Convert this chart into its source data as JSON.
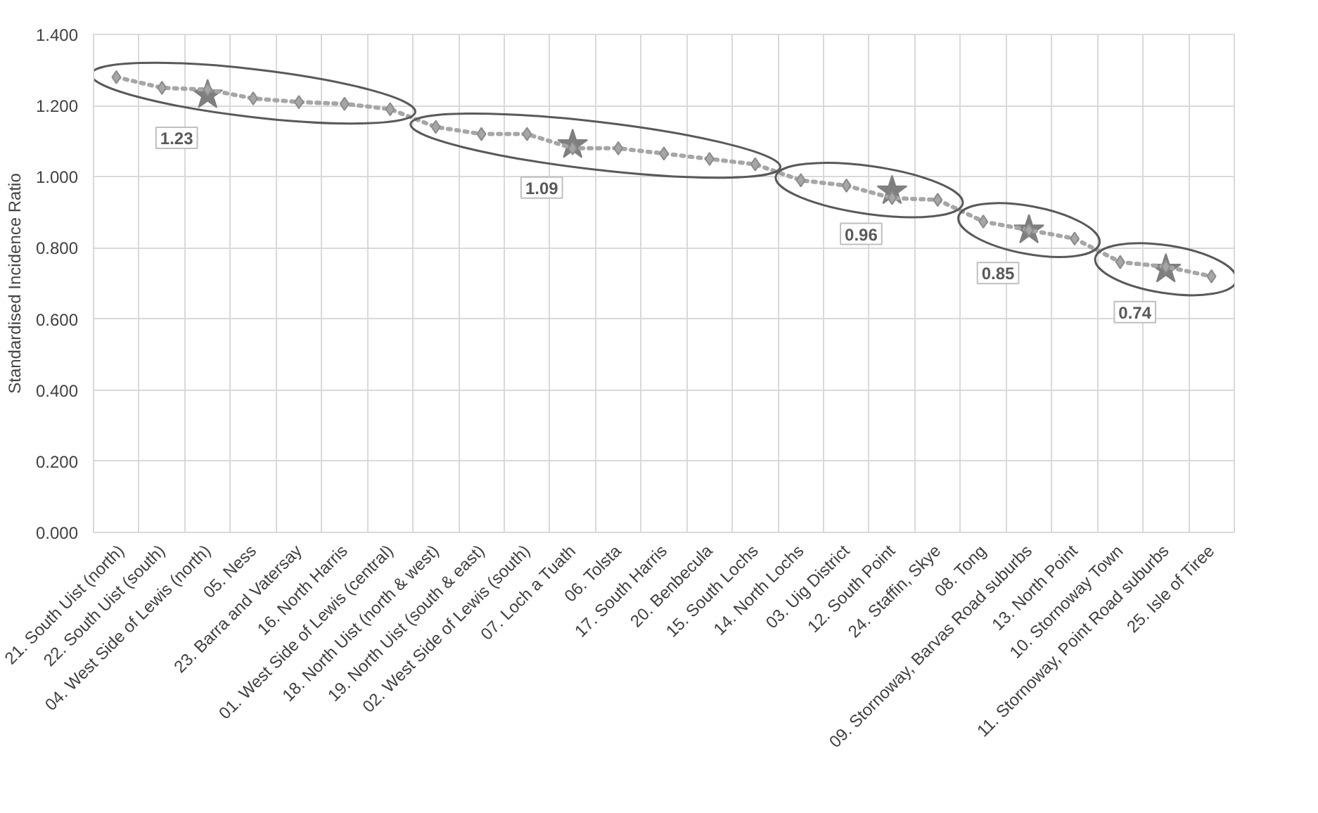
{
  "chart_data": {
    "type": "line",
    "ylabel": "Standardised Incidence Ratio",
    "categories": [
      "21. South Uist (north)",
      "22. South Uist (south)",
      "04. West Side of Lewis (north)",
      "05. Ness",
      "23. Barra and Vatersay",
      "16. North Harris",
      "01. West Side of Lewis (central)",
      "18. North Uist (north & west)",
      "19. North Uist (south & east)",
      "02. West Side of Lewis (south)",
      "07. Loch a Tuath",
      "06. Tolsta",
      "17. South Harris",
      "20. Benbecula",
      "15. South Lochs",
      "14. North Lochs",
      "03. Uig District",
      "12. South Point",
      "24. Staffin, Skye",
      "08. Tong",
      "09. Stornoway, Barvas Road suburbs",
      "13. North Point",
      "10. Stornoway Town",
      "11. Stornoway, Point Road suburbs",
      "25. Isle of Tiree"
    ],
    "series": [
      {
        "color": "#a6a6a6",
        "marker": "diamond",
        "line_style": "dotted",
        "values": [
          1.28,
          1.25,
          1.245,
          1.22,
          1.21,
          1.205,
          1.19,
          1.14,
          1.12,
          1.12,
          1.08,
          1.08,
          1.065,
          1.05,
          1.035,
          0.99,
          0.975,
          0.94,
          0.935,
          0.874,
          0.85,
          0.826,
          0.76,
          0.747,
          0.72
        ]
      },
      {
        "type": "scatter",
        "color": "#7f7f7f",
        "marker": "star",
        "values": [
          null,
          null,
          1.23,
          null,
          null,
          null,
          null,
          null,
          null,
          null,
          1.09,
          null,
          null,
          null,
          null,
          null,
          null,
          0.96,
          null,
          null,
          0.85,
          null,
          null,
          0.74,
          null
        ],
        "value_labels": [
          null,
          null,
          "1.23",
          null,
          null,
          null,
          null,
          null,
          null,
          null,
          "1.09",
          null,
          null,
          null,
          null,
          null,
          null,
          "0.96",
          null,
          null,
          "0.85",
          null,
          null,
          "0.74",
          null
        ]
      }
    ],
    "ylim": [
      0,
      1.4
    ],
    "yticks": [
      {
        "value": 0,
        "label": "0.000"
      },
      {
        "value": 0.2,
        "label": "0.200"
      },
      {
        "value": 0.4,
        "label": "0.400"
      },
      {
        "value": 0.6,
        "label": "0.600"
      },
      {
        "value": 0.8,
        "label": "0.800"
      },
      {
        "value": 1.0,
        "label": "1.000"
      },
      {
        "value": 1.2,
        "label": "1.200"
      },
      {
        "value": 1.4,
        "label": "1.400"
      }
    ],
    "grid": true
  }
}
